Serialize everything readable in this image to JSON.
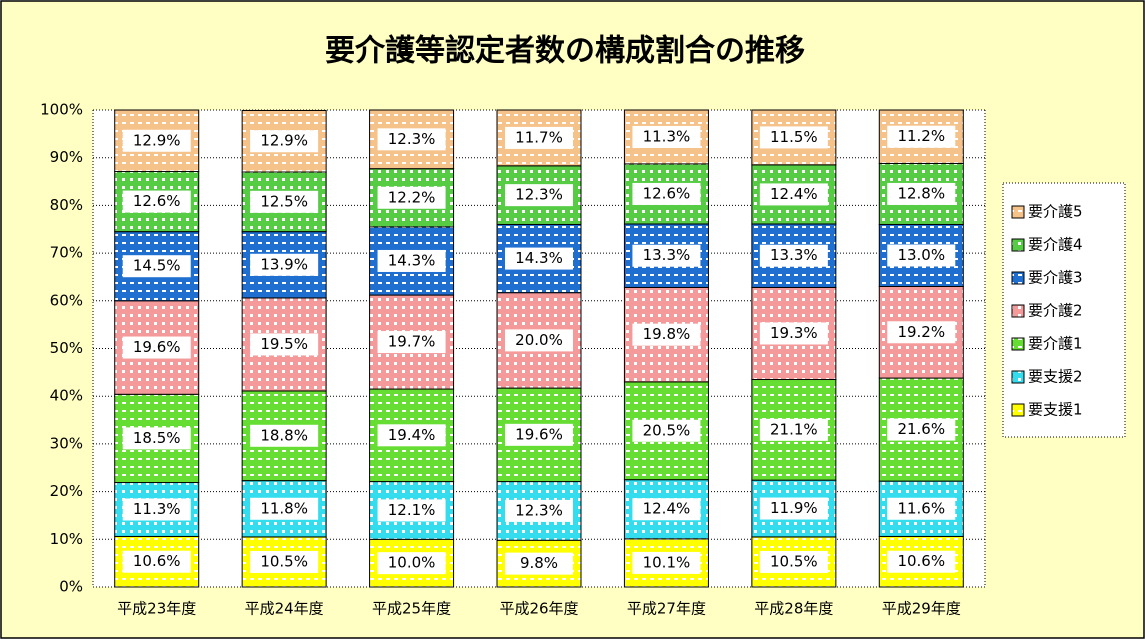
{
  "chart_data": {
    "type": "stacked_bar_percent",
    "title": "要介護等認定者数の構成割合の推移",
    "categories": [
      "平成23年度",
      "平成24年度",
      "平成25年度",
      "平成26年度",
      "平成27年度",
      "平成28年度",
      "平成29年度"
    ],
    "series": [
      {
        "name": "要支援1",
        "color": "#ffff00",
        "values": [
          10.6,
          10.5,
          10.0,
          9.8,
          10.1,
          10.5,
          10.6
        ],
        "value_labels": [
          "10.6%",
          "10.5%",
          "10.0%",
          "9.8%",
          "10.1%",
          "10.5%",
          "10.6%"
        ]
      },
      {
        "name": "要支援2",
        "color": "#33ddee",
        "values": [
          11.3,
          11.8,
          12.1,
          12.3,
          12.4,
          11.9,
          11.6
        ],
        "value_labels": [
          "11.3%",
          "11.8%",
          "12.1%",
          "12.3%",
          "12.4%",
          "11.9%",
          "11.6%"
        ]
      },
      {
        "name": "要介護1",
        "color": "#66dd33",
        "values": [
          18.5,
          18.8,
          19.4,
          19.6,
          20.5,
          21.1,
          21.6
        ],
        "value_labels": [
          "18.5%",
          "18.8%",
          "19.4%",
          "19.6%",
          "20.5%",
          "21.1%",
          "21.6%"
        ]
      },
      {
        "name": "要介護2",
        "color": "#f49a9a",
        "values": [
          19.6,
          19.5,
          19.7,
          20.0,
          19.8,
          19.3,
          19.2
        ],
        "value_labels": [
          "19.6%",
          "19.5%",
          "19.7%",
          "20.0%",
          "19.8%",
          "19.3%",
          "19.2%"
        ]
      },
      {
        "name": "要介護3",
        "color": "#1f6fd0",
        "values": [
          14.5,
          13.9,
          14.3,
          14.3,
          13.3,
          13.3,
          13.0
        ],
        "value_labels": [
          "14.5%",
          "13.9%",
          "14.3%",
          "14.3%",
          "13.3%",
          "13.3%",
          "13.0%"
        ]
      },
      {
        "name": "要介護4",
        "color": "#55cc44",
        "values": [
          12.6,
          12.5,
          12.2,
          12.3,
          12.6,
          12.4,
          12.8
        ],
        "value_labels": [
          "12.6%",
          "12.5%",
          "12.2%",
          "12.3%",
          "12.6%",
          "12.4%",
          "12.8%"
        ]
      },
      {
        "name": "要介護5",
        "color": "#f5c28a",
        "values": [
          12.9,
          12.9,
          12.3,
          11.7,
          11.3,
          11.5,
          11.2
        ],
        "value_labels": [
          "12.9%",
          "12.9%",
          "12.3%",
          "11.7%",
          "11.3%",
          "11.5%",
          "11.2%"
        ]
      }
    ],
    "ylim": [
      0,
      100
    ],
    "yticks": [
      {
        "value": 0,
        "label": "0%"
      },
      {
        "value": 10,
        "label": "10%"
      },
      {
        "value": 20,
        "label": "20%"
      },
      {
        "value": 30,
        "label": "30%"
      },
      {
        "value": 40,
        "label": "40%"
      },
      {
        "value": 50,
        "label": "50%"
      },
      {
        "value": 60,
        "label": "60%"
      },
      {
        "value": 70,
        "label": "70%"
      },
      {
        "value": 80,
        "label": "80%"
      },
      {
        "value": 90,
        "label": "90%"
      },
      {
        "value": 100,
        "label": "100%"
      }
    ],
    "grid": true,
    "legend": "right"
  }
}
